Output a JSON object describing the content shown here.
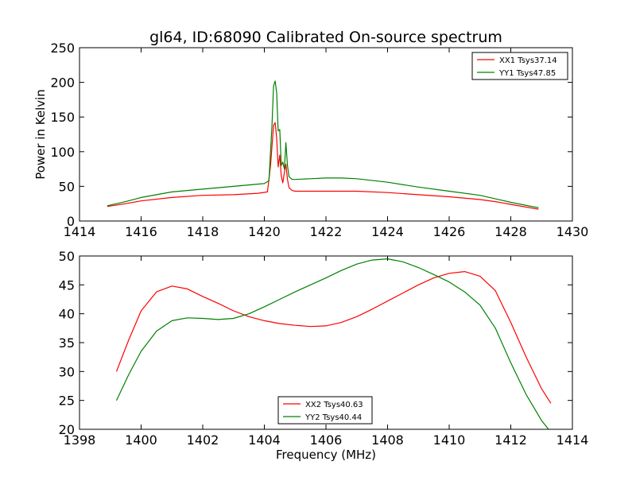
{
  "chart_data": [
    {
      "type": "line",
      "title": "gl64, ID:68090 Calibrated On-source spectrum",
      "xlabel": "",
      "ylabel": "Power in Kelvin",
      "xlim": [
        1414,
        1430
      ],
      "ylim": [
        0,
        250
      ],
      "xticks": [
        "1414",
        "1416",
        "1418",
        "1420",
        "1422",
        "1424",
        "1426",
        "1428",
        "1430"
      ],
      "yticks": [
        "0",
        "50",
        "100",
        "150",
        "200",
        "250"
      ],
      "legend_position": "top-right",
      "grid": false,
      "series": [
        {
          "name": "XX1 Tsys37.14",
          "color": "#ff0000",
          "x": [
            1414.9,
            1415.5,
            1416.0,
            1417.0,
            1418.0,
            1419.0,
            1419.8,
            1420.1,
            1420.2,
            1420.3,
            1420.35,
            1420.4,
            1420.45,
            1420.5,
            1420.55,
            1420.6,
            1420.65,
            1420.7,
            1420.75,
            1420.8,
            1420.9,
            1421.0,
            1421.5,
            1422.0,
            1423.0,
            1424.0,
            1425.0,
            1426.0,
            1427.0,
            1427.5,
            1428.0,
            1428.9
          ],
          "y": [
            21,
            25,
            29,
            34,
            37,
            38,
            40,
            42,
            80,
            138,
            142,
            120,
            78,
            95,
            65,
            55,
            70,
            82,
            60,
            48,
            44,
            43,
            43,
            43,
            43,
            41,
            38,
            35,
            31,
            28,
            24,
            17
          ]
        },
        {
          "name": "YY1 Tsys47.85",
          "color": "#008000",
          "x": [
            1414.9,
            1415.5,
            1416.0,
            1417.0,
            1418.0,
            1419.0,
            1420.0,
            1420.15,
            1420.25,
            1420.3,
            1420.35,
            1420.4,
            1420.45,
            1420.5,
            1420.55,
            1420.6,
            1420.65,
            1420.7,
            1420.75,
            1420.8,
            1420.9,
            1421.0,
            1421.5,
            1422.0,
            1422.5,
            1423.0,
            1424.0,
            1425.0,
            1426.0,
            1427.0,
            1427.5,
            1428.0,
            1428.9
          ],
          "y": [
            22,
            28,
            34,
            42,
            46,
            50,
            54,
            58,
            140,
            195,
            202,
            185,
            130,
            132,
            80,
            85,
            75,
            113,
            80,
            64,
            60,
            60,
            61,
            62,
            62,
            61,
            56,
            49,
            43,
            37,
            32,
            27,
            19
          ]
        }
      ]
    },
    {
      "type": "line",
      "title": "",
      "xlabel": "Frequency (MHz)",
      "ylabel": "",
      "xlim": [
        1398,
        1414
      ],
      "ylim": [
        20,
        50
      ],
      "xticks": [
        "1398",
        "1400",
        "1402",
        "1404",
        "1406",
        "1408",
        "1410",
        "1412",
        "1414"
      ],
      "yticks": [
        "20",
        "25",
        "30",
        "35",
        "40",
        "45",
        "50"
      ],
      "legend_position": "lower-center",
      "grid": false,
      "series": [
        {
          "name": "XX2 Tsys40.63",
          "color": "#ff0000",
          "x": [
            1399.2,
            1399.6,
            1400.0,
            1400.5,
            1401.0,
            1401.5,
            1402.0,
            1402.5,
            1403.0,
            1403.5,
            1404.0,
            1404.5,
            1405.0,
            1405.5,
            1406.0,
            1406.5,
            1407.0,
            1407.5,
            1408.0,
            1408.5,
            1409.0,
            1409.5,
            1410.0,
            1410.5,
            1411.0,
            1411.5,
            1412.0,
            1412.5,
            1413.0,
            1413.3
          ],
          "y": [
            30.0,
            35.5,
            40.5,
            43.8,
            44.8,
            44.3,
            43.0,
            41.8,
            40.5,
            39.5,
            38.8,
            38.3,
            38.0,
            37.8,
            37.9,
            38.5,
            39.5,
            40.8,
            42.2,
            43.6,
            45.0,
            46.2,
            47.0,
            47.3,
            46.5,
            44.0,
            38.5,
            32.5,
            27.0,
            24.5
          ]
        },
        {
          "name": "YY2 Tsys40.44",
          "color": "#008000",
          "x": [
            1399.2,
            1399.6,
            1400.0,
            1400.5,
            1401.0,
            1401.5,
            1402.0,
            1402.5,
            1403.0,
            1403.5,
            1404.0,
            1404.5,
            1405.0,
            1405.5,
            1406.0,
            1406.5,
            1407.0,
            1407.5,
            1408.0,
            1408.5,
            1409.0,
            1409.5,
            1410.0,
            1410.5,
            1411.0,
            1411.5,
            1412.0,
            1412.5,
            1413.0,
            1413.3
          ],
          "y": [
            25.0,
            29.5,
            33.5,
            37.0,
            38.8,
            39.3,
            39.2,
            39.0,
            39.2,
            40.0,
            41.2,
            42.5,
            43.8,
            45.0,
            46.2,
            47.5,
            48.6,
            49.3,
            49.5,
            49.0,
            48.0,
            46.8,
            45.5,
            43.8,
            41.5,
            37.5,
            31.5,
            26.0,
            21.5,
            19.5
          ]
        }
      ]
    }
  ]
}
